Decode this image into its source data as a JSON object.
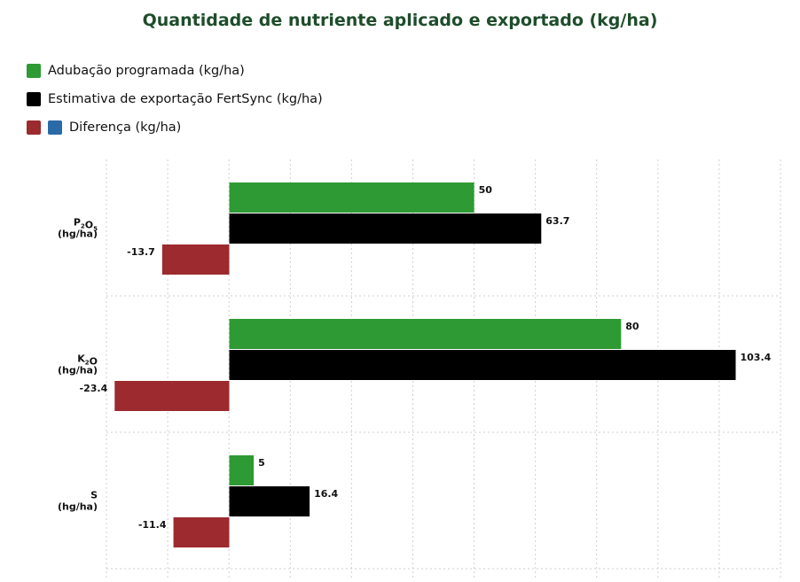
{
  "chart_data": {
    "type": "bar",
    "orientation": "horizontal",
    "title": "Quantidade de nutriente aplicado e exportado (kg/ha)",
    "categories": [
      [
        "P",
        "2",
        "O",
        "5",
        "(hg/ha)"
      ],
      [
        "K",
        "2",
        "O",
        "",
        "(hg/ha)"
      ],
      [
        "S",
        "",
        "",
        "",
        "(hg/ha)"
      ]
    ],
    "series": [
      {
        "name": "Adubação programada (kg/ha)",
        "values": [
          50,
          80,
          5
        ],
        "color": "#2e9a34"
      },
      {
        "name": "Estimativa de exportação FertSync (kg/ha)",
        "values": [
          63.7,
          103.4,
          16.4
        ],
        "color": "#000000"
      },
      {
        "name": "Diferença (kg/ha)",
        "values": [
          -13.7,
          -23.4,
          -11.4
        ],
        "color": "#9c2a2e",
        "alt_color": "#2a6aa6"
      }
    ],
    "xlim": [
      -25,
      112.5
    ],
    "grid": true,
    "legend_position": "top-left"
  }
}
